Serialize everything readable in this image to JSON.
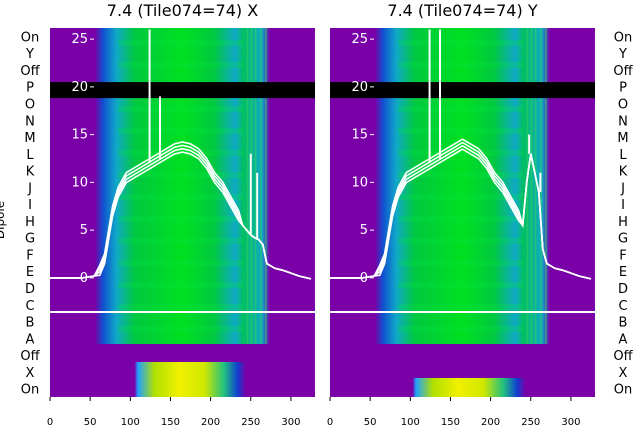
{
  "chart_data": [
    {
      "type": "heatmap",
      "title": "7.4 (Tile074=74) X",
      "ylabel": "Dipole",
      "row_labels": [
        "On",
        "Y",
        "Off",
        "P",
        "O",
        "N",
        "M",
        "L",
        "K",
        "J",
        "I",
        "H",
        "G",
        "F",
        "E",
        "D",
        "C",
        "B",
        "A",
        "Off",
        "X",
        "On"
      ],
      "xlim": [
        0,
        330
      ],
      "xticks": [
        0,
        50,
        100,
        150,
        200,
        250,
        300
      ],
      "overlay": {
        "type": "line",
        "ylim": [
          -2,
          27
        ],
        "yticks": [
          0,
          5,
          10,
          15,
          20,
          25
        ],
        "x": [
          0,
          40,
          55,
          62,
          68,
          72,
          78,
          85,
          95,
          105,
          115,
          125,
          135,
          145,
          155,
          165,
          175,
          185,
          195,
          205,
          215,
          225,
          235,
          240,
          245,
          250,
          255,
          260,
          265,
          270,
          280,
          290,
          300,
          310,
          325
        ],
        "y": [
          0,
          0,
          0.2,
          0.8,
          2,
          4,
          7,
          9,
          10.5,
          11,
          11.5,
          12,
          12.5,
          13,
          13.5,
          13.7,
          13.5,
          13,
          12,
          10.5,
          9.5,
          8,
          6.5,
          5.5,
          5,
          4.5,
          4.2,
          4,
          3.5,
          1.5,
          1,
          0.8,
          0.5,
          0.2,
          -0.1
        ],
        "spikes": [
          {
            "x": 124,
            "y": 26
          },
          {
            "x": 137,
            "y": 19
          },
          {
            "x": 250,
            "y": 13
          },
          {
            "x": 258,
            "y": 11
          }
        ]
      }
    },
    {
      "type": "heatmap",
      "title": "7.4 (Tile074=74) Y",
      "ylabel": "",
      "row_labels": [
        "On",
        "Y",
        "Off",
        "P",
        "O",
        "N",
        "M",
        "L",
        "K",
        "J",
        "I",
        "H",
        "G",
        "F",
        "E",
        "D",
        "C",
        "B",
        "A",
        "Off",
        "X",
        "On"
      ],
      "xlim": [
        0,
        330
      ],
      "xticks": [
        0,
        50,
        100,
        150,
        200,
        250,
        300
      ],
      "overlay": {
        "type": "line",
        "ylim": [
          -2,
          27
        ],
        "yticks": [
          0,
          5,
          10,
          15,
          20,
          25
        ],
        "x": [
          0,
          40,
          55,
          62,
          68,
          72,
          78,
          85,
          95,
          105,
          115,
          125,
          135,
          145,
          155,
          165,
          175,
          185,
          195,
          205,
          215,
          225,
          235,
          240,
          245,
          250,
          255,
          260,
          265,
          270,
          280,
          290,
          300,
          310,
          325
        ],
        "y": [
          0,
          0,
          0.2,
          0.8,
          2,
          4,
          7,
          9,
          10.5,
          11,
          11.5,
          12,
          12.5,
          13,
          13.5,
          14,
          13.5,
          13,
          12,
          10.5,
          9.5,
          8,
          6.5,
          5.5,
          10,
          13,
          11,
          9,
          3,
          1.5,
          1,
          0.8,
          0.5,
          0.2,
          -0.1
        ],
        "spikes": [
          {
            "x": 124,
            "y": 26
          },
          {
            "x": 137,
            "y": 26
          },
          {
            "x": 248,
            "y": 15
          },
          {
            "x": 262,
            "y": 11
          }
        ]
      }
    }
  ],
  "colors": {
    "outer": "#7a00a8",
    "blue": "#0a60d8",
    "cyan": "#10b0c8",
    "green": "#00d020",
    "yellow": "#e8e800",
    "overlay_line": "#ffffff",
    "band": "#000000"
  }
}
